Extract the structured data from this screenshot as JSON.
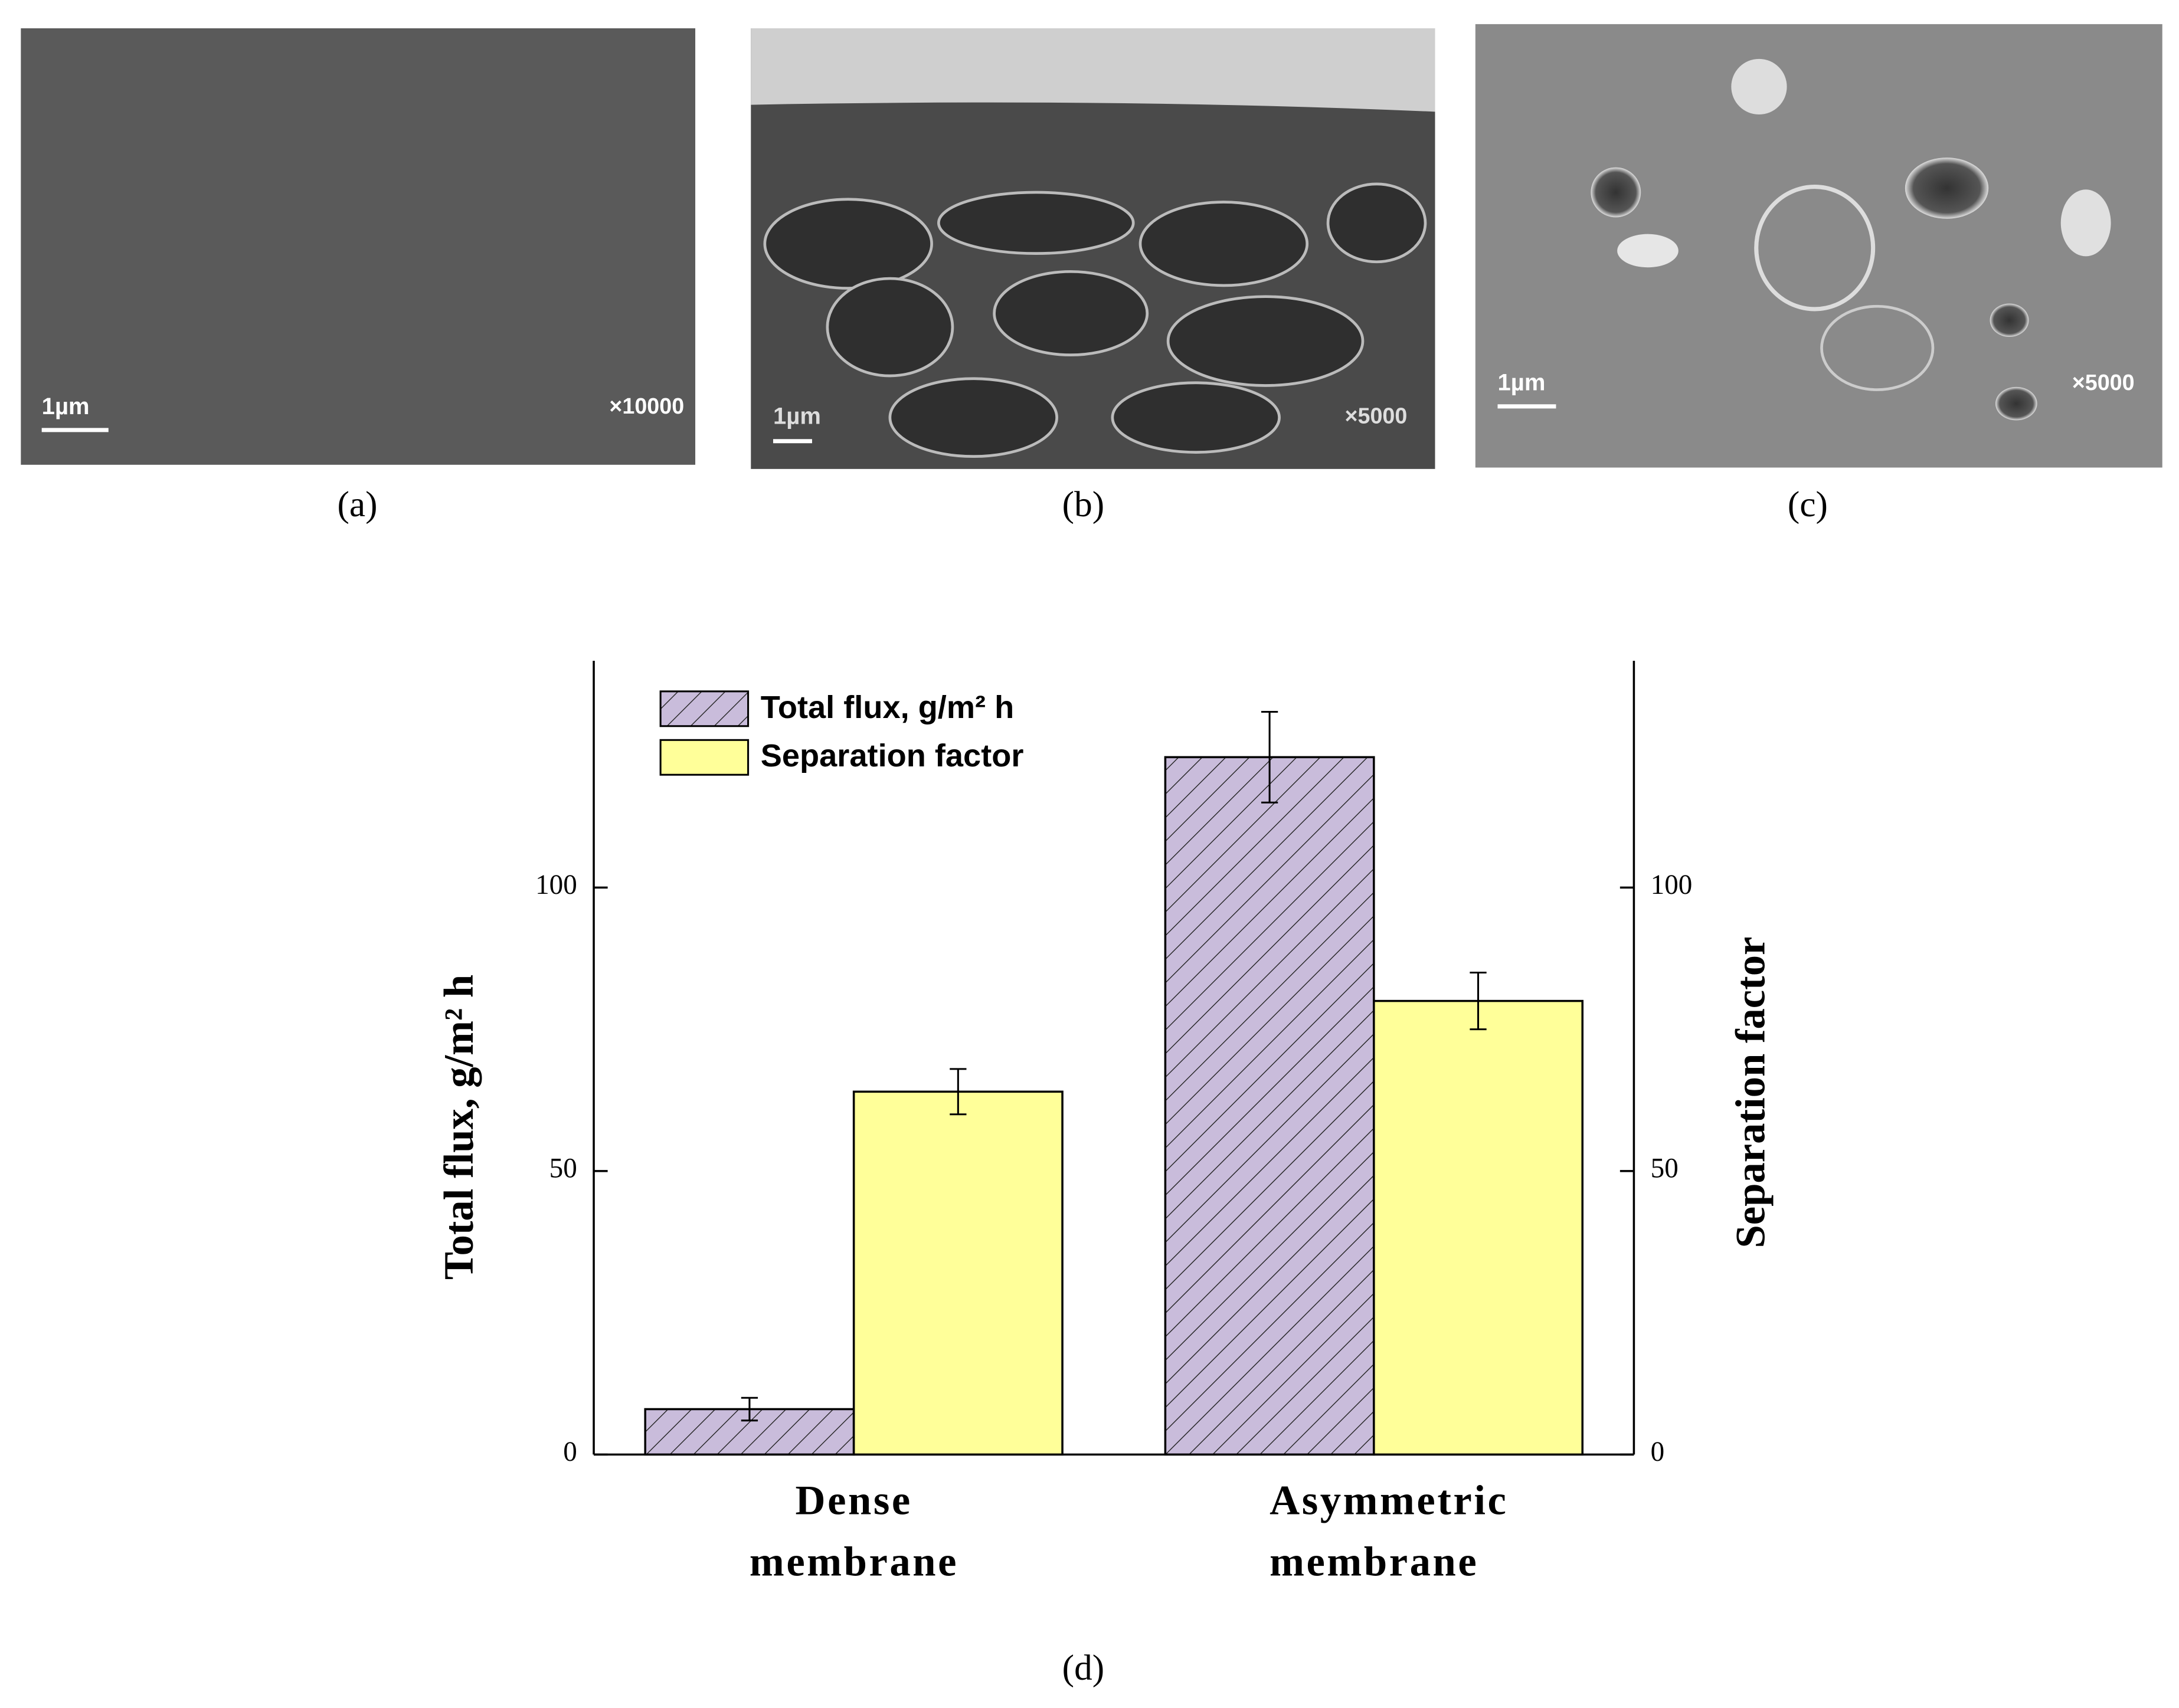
{
  "panels": [
    {
      "label": "(a)",
      "scale_bar": "1µm",
      "magnification": "×10000"
    },
    {
      "label": "(b)",
      "scale_bar": "1µm",
      "magnification": "×5000"
    },
    {
      "label": "(c)",
      "scale_bar": "1µm",
      "magnification": "×5000"
    }
  ],
  "chart_data": {
    "type": "bar",
    "label": "(d)",
    "categories": [
      "Dense membrane",
      "Asymmetric membrane"
    ],
    "y_label": "Total flux, g/m² h",
    "y2_label": "Separation factor",
    "series": [
      {
        "name": "Total flux, g/m² h",
        "color": "#c9bcdb",
        "hatch": true,
        "values": [
          8,
          123
        ],
        "errors": [
          2,
          8
        ]
      },
      {
        "name": "Separation factor",
        "color": "#ffff99",
        "axis": "y2",
        "values": [
          64,
          80
        ],
        "errors": [
          4,
          5
        ]
      }
    ],
    "ylim": [
      0,
      140
    ],
    "yticks": [
      0,
      50,
      100
    ],
    "y2lim": [
      0,
      140
    ],
    "y2ticks": [
      0,
      50,
      100
    ],
    "legend": "upper left"
  }
}
